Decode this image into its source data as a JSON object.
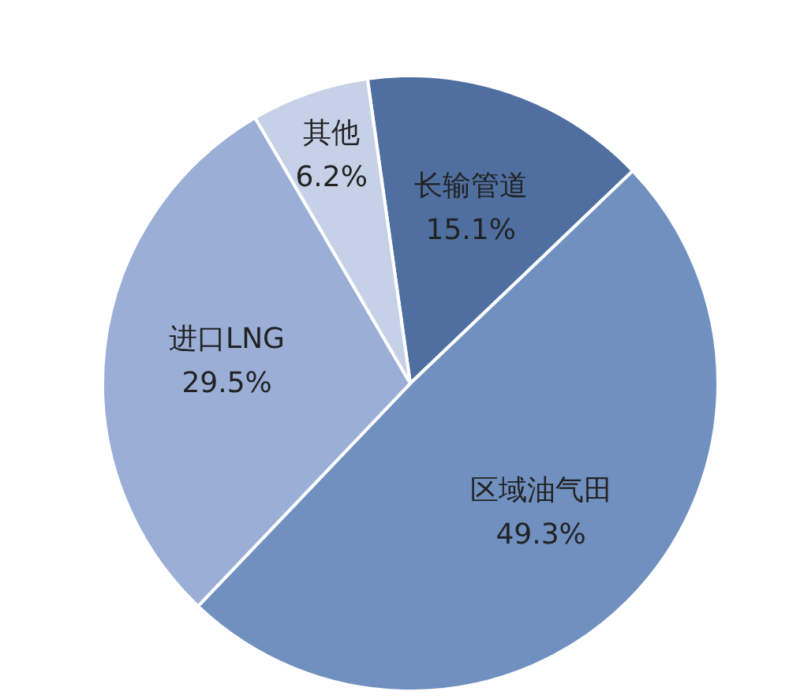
{
  "chart_data": {
    "type": "pie",
    "categories": [
      "长输管道",
      "区域油气田",
      "进口LNG",
      "其他"
    ],
    "values": [
      15.1,
      49.3,
      29.5,
      6.2
    ],
    "colors": [
      "#4f6fa0",
      "#7090c0",
      "#9aaed6",
      "#c6d1e8"
    ],
    "value_labels": [
      "15.1%",
      "49.3%",
      "29.5%",
      "6.2%"
    ]
  }
}
